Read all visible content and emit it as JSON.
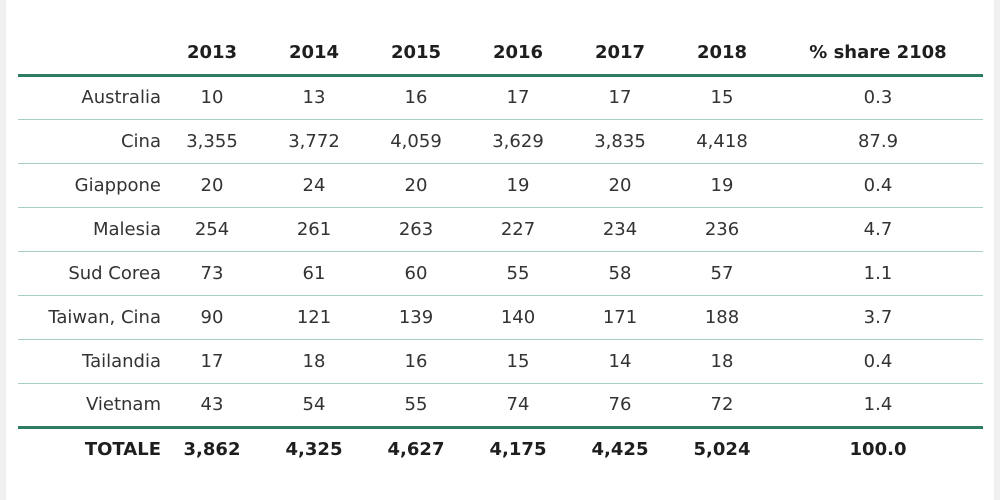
{
  "table": {
    "headers": [
      "",
      "2013",
      "2014",
      "2015",
      "2016",
      "2017",
      "2018",
      "% share 2108"
    ],
    "rows": [
      [
        "Australia",
        "10",
        "13",
        "16",
        "17",
        "17",
        "15",
        "0.3"
      ],
      [
        "Cina",
        "3,355",
        "3,772",
        "4,059",
        "3,629",
        "3,835",
        "4,418",
        "87.9"
      ],
      [
        "Giappone",
        "20",
        "24",
        "20",
        "19",
        "20",
        "19",
        "0.4"
      ],
      [
        "Malesia",
        "254",
        "261",
        "263",
        "227",
        "234",
        "236",
        "4.7"
      ],
      [
        "Sud Corea",
        "73",
        "61",
        "60",
        "55",
        "58",
        "57",
        "1.1"
      ],
      [
        "Taiwan, Cina",
        "90",
        "121",
        "139",
        "140",
        "171",
        "188",
        "3.7"
      ],
      [
        "Tailandia",
        "17",
        "18",
        "16",
        "15",
        "14",
        "18",
        "0.4"
      ],
      [
        "Vietnam",
        "43",
        "54",
        "55",
        "74",
        "76",
        "72",
        "1.4"
      ]
    ],
    "total": [
      "TOTALE",
      "3,862",
      "4,325",
      "4,627",
      "4,175",
      "4,425",
      "5,024",
      "100.0"
    ]
  },
  "colors": {
    "rule_dark": "#2f7c62",
    "rule_light": "#a9cfc1"
  }
}
